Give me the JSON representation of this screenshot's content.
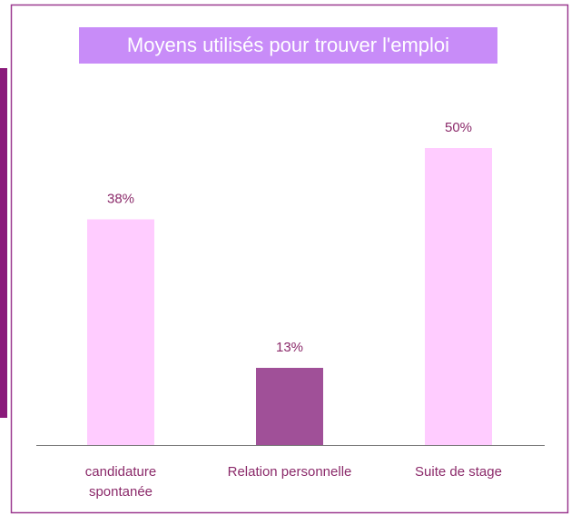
{
  "chart_data": {
    "type": "bar",
    "title": "Moyens utilisés pour trouver l'emploi",
    "categories": [
      "candidature spontanée",
      "Relation personnelle",
      "Suite de stage"
    ],
    "values": [
      38,
      13,
      50
    ],
    "value_labels": [
      "38%",
      "13%",
      "50%"
    ],
    "colors": [
      "#ffccff",
      "#a05098",
      "#ffccff"
    ],
    "ylim": [
      0,
      50
    ]
  }
}
